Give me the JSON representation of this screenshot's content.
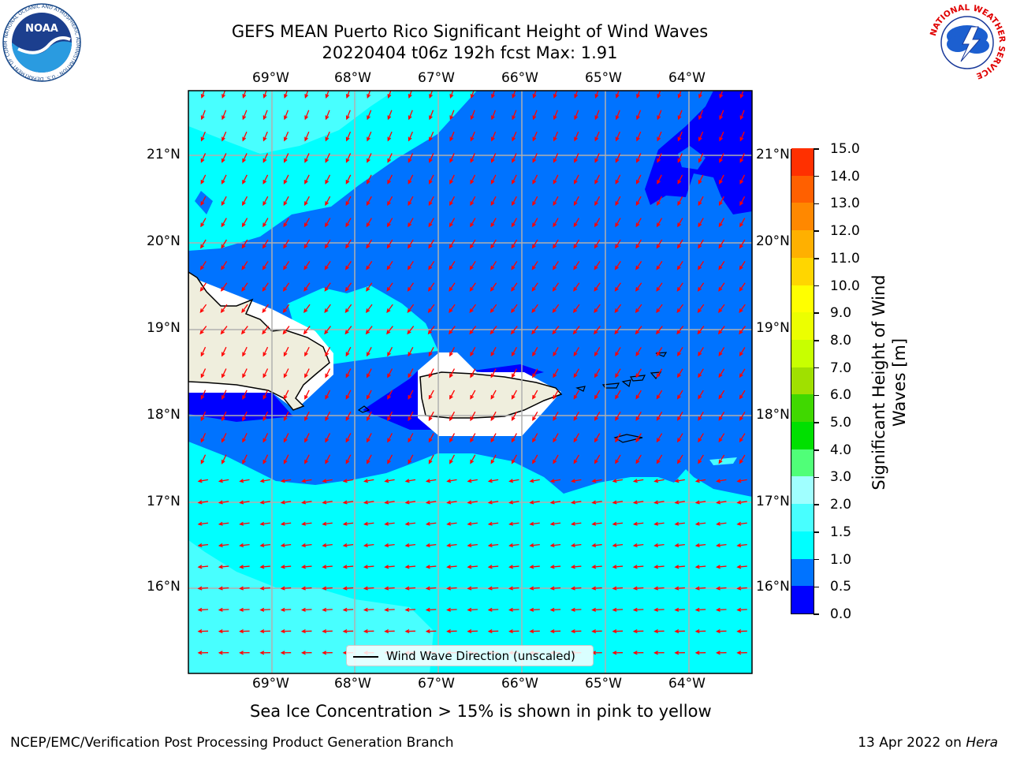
{
  "title": {
    "line1": "GEFS MEAN Puerto Rico Significant Height of Wind Waves",
    "line2": "20220404 t06z 192h fcst   Max: 1.91"
  },
  "logos": {
    "noaa": {
      "text": "NOAA",
      "ring_text": "NATIONAL OCEANIC AND ATMOSPHERIC ADMINISTRATION · U.S. DEPARTMENT OF COMMERCE"
    },
    "nws": {
      "ring_text": "NATIONAL WEATHER SERVICE"
    }
  },
  "map": {
    "lon_labels": [
      "69°W",
      "68°W",
      "67°W",
      "66°W",
      "65°W",
      "64°W"
    ],
    "lat_labels": [
      "21°N",
      "20°N",
      "19°N",
      "18°N",
      "17°N",
      "16°N"
    ],
    "legend": "Wind Wave Direction (unscaled)",
    "arrow_color": "#ff0000",
    "land_color": "#efeedd"
  },
  "colorbar": {
    "title": "Significant Height of Wind Waves [m]",
    "ticks": [
      "0.0",
      "0.5",
      "1.0",
      "1.5",
      "2.0",
      "3.0",
      "4.0",
      "5.0",
      "6.0",
      "7.0",
      "8.0",
      "9.0",
      "10.0",
      "11.0",
      "12.0",
      "13.0",
      "14.0",
      "15.0"
    ],
    "colors": [
      "#0000ff",
      "#0073ff",
      "#00ffff",
      "#48ffff",
      "#a0ffff",
      "#50ff78",
      "#00e000",
      "#40d800",
      "#a0e000",
      "#c8ff00",
      "#ecff00",
      "#ffff00",
      "#ffd600",
      "#ffb000",
      "#ff8800",
      "#ff6000",
      "#ff3000"
    ]
  },
  "sea_ice_note": "Sea Ice Concentration > 15% is shown in pink to yellow",
  "footer": {
    "left": "NCEP/EMC/Verification Post Processing Product Generation Branch",
    "right_prefix": "13 Apr 2022 on ",
    "right_host": "Hera"
  }
}
